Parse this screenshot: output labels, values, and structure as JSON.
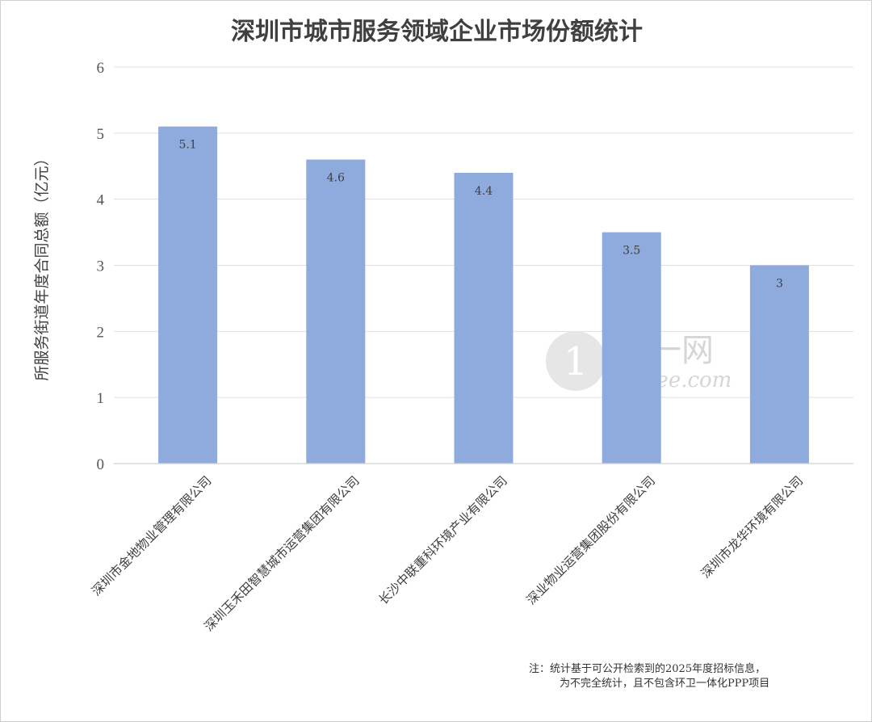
{
  "chart_data": {
    "type": "bar",
    "title": "深圳市城市服务领域企业市场份额统计",
    "xlabel": "",
    "ylabel": "所服务街道年度合同总额（亿元）",
    "categories": [
      "深圳市金地物业管理有限公司",
      "深圳玉禾田智慧城市运营集团有限公司",
      "长沙中联重科环境产业有限公司",
      "深业物业运营集团股份有限公司",
      "深圳市龙华环境有限公司"
    ],
    "values": [
      5.1,
      4.6,
      4.4,
      3.5,
      3
    ],
    "data_labels": [
      "5.1",
      "4.6",
      "4.4",
      "3.5",
      "3"
    ],
    "ylim": [
      0,
      6
    ],
    "yticks": [
      "0",
      "1",
      "2",
      "3",
      "4",
      "5",
      "6"
    ],
    "grid": true,
    "legend": "none",
    "bar_color": "#8faadc"
  },
  "note": {
    "line1": "注：统计基于可公开检索到的2025年度招标信息，",
    "line2": "为不完全统计，且不包含环卫一体化PPP项目"
  },
  "watermark": {
    "text_cn": "奥一网",
    "text_en": "oeeee.com"
  }
}
